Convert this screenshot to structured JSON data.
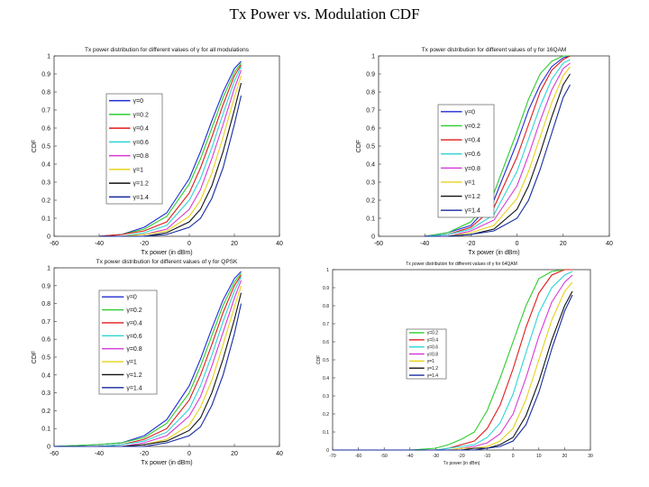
{
  "page": {
    "title": "Tx Power vs. Modulation CDF"
  },
  "legend_labels": {
    "full": [
      "γ=0",
      "γ=0.2",
      "γ=0.4",
      "γ=0.6",
      "γ=0.8",
      "γ=1",
      "γ=1.2",
      "γ=1.4"
    ],
    "short": [
      "γ=0.2",
      "γ=0.4",
      "γ=0.6",
      "γ=0.8",
      "γ=1",
      "γ=1.2",
      "γ=1.4"
    ]
  },
  "chart_data": [
    {
      "id": "all",
      "type": "line",
      "title": "Tx power distribution for different values of γ for all modulations",
      "xlabel": "Tx power (in dBm)",
      "ylabel": "CDF",
      "xlim": [
        -60,
        40
      ],
      "ylim": [
        0,
        1
      ],
      "xticks": [
        "-60",
        "-40",
        "-20",
        "0",
        "20",
        "40"
      ],
      "yticks": [
        "0",
        "0.1",
        "0.2",
        "0.3",
        "0.4",
        "0.5",
        "0.6",
        "0.7",
        "0.8",
        "0.9",
        "1"
      ],
      "legend_position": "left",
      "x": [
        -40,
        -30,
        -20,
        -10,
        0,
        5,
        10,
        15,
        20,
        23
      ],
      "series": [
        {
          "name": "γ=0",
          "color": "#1f2bd6",
          "values": [
            0,
            0.01,
            0.05,
            0.13,
            0.32,
            0.47,
            0.64,
            0.8,
            0.93,
            0.97
          ]
        },
        {
          "name": "γ=0.2",
          "color": "#2ecc2e",
          "values": [
            0,
            0.01,
            0.04,
            0.11,
            0.29,
            0.43,
            0.6,
            0.77,
            0.91,
            0.96
          ]
        },
        {
          "name": "γ=0.4",
          "color": "#e01b1b",
          "values": [
            0,
            0.01,
            0.03,
            0.08,
            0.24,
            0.38,
            0.55,
            0.73,
            0.89,
            0.95
          ]
        },
        {
          "name": "γ=0.6",
          "color": "#2fd4d4",
          "values": [
            0,
            0,
            0.02,
            0.06,
            0.2,
            0.32,
            0.49,
            0.68,
            0.86,
            0.94
          ]
        },
        {
          "name": "γ=0.8",
          "color": "#d63ad6",
          "values": [
            0,
            0,
            0.01,
            0.04,
            0.15,
            0.26,
            0.43,
            0.62,
            0.82,
            0.92
          ]
        },
        {
          "name": "γ=1",
          "color": "#e6d21a",
          "values": [
            0,
            0,
            0.01,
            0.03,
            0.11,
            0.2,
            0.35,
            0.55,
            0.77,
            0.89
          ]
        },
        {
          "name": "γ=1.2",
          "color": "#111111",
          "values": [
            0,
            0,
            0,
            0.02,
            0.08,
            0.15,
            0.28,
            0.47,
            0.7,
            0.85
          ]
        },
        {
          "name": "γ=1.4",
          "color": "#142a9e",
          "values": [
            0,
            0,
            0,
            0.01,
            0.05,
            0.1,
            0.21,
            0.38,
            0.62,
            0.78
          ]
        }
      ]
    },
    {
      "id": "16qam",
      "type": "line",
      "title": "Tx power distribution for different values of γ for 16QAM",
      "xlabel": "Tx power (in dBm)",
      "ylabel": "CDF",
      "xlim": [
        -60,
        40
      ],
      "ylim": [
        0,
        1
      ],
      "xticks": [
        "-60",
        "-40",
        "-20",
        "0",
        "20",
        "40"
      ],
      "yticks": [
        "0",
        "0.1",
        "0.2",
        "0.3",
        "0.4",
        "0.5",
        "0.6",
        "0.7",
        "0.8",
        "0.9",
        "1"
      ],
      "legend_position": "left",
      "x": [
        -40,
        -30,
        -20,
        -10,
        0,
        5,
        10,
        15,
        20,
        23
      ],
      "series": [
        {
          "name": "γ=0",
          "color": "#1f2bd6",
          "values": [
            0,
            0.02,
            0.06,
            0.2,
            0.52,
            0.7,
            0.84,
            0.94,
            0.99,
            1.0
          ]
        },
        {
          "name": "γ=0.2",
          "color": "#2ecc2e",
          "values": [
            0,
            0.02,
            0.08,
            0.24,
            0.58,
            0.76,
            0.9,
            0.97,
            1.0,
            1.0
          ]
        },
        {
          "name": "γ=0.4",
          "color": "#e01b1b",
          "values": [
            0,
            0.01,
            0.05,
            0.16,
            0.44,
            0.62,
            0.8,
            0.92,
            0.98,
            1.0
          ]
        },
        {
          "name": "γ=0.6",
          "color": "#2fd4d4",
          "values": [
            0,
            0.01,
            0.04,
            0.12,
            0.36,
            0.54,
            0.72,
            0.87,
            0.96,
            0.98
          ]
        },
        {
          "name": "γ=0.8",
          "color": "#d63ad6",
          "values": [
            0,
            0,
            0.03,
            0.09,
            0.28,
            0.45,
            0.64,
            0.81,
            0.93,
            0.96
          ]
        },
        {
          "name": "γ=1",
          "color": "#e6d21a",
          "values": [
            0,
            0,
            0.02,
            0.06,
            0.21,
            0.36,
            0.55,
            0.74,
            0.89,
            0.94
          ]
        },
        {
          "name": "γ=1.2",
          "color": "#111111",
          "values": [
            0,
            0,
            0.01,
            0.04,
            0.15,
            0.28,
            0.46,
            0.66,
            0.84,
            0.9
          ]
        },
        {
          "name": "γ=1.4",
          "color": "#142a9e",
          "values": [
            0,
            0,
            0.01,
            0.03,
            0.1,
            0.2,
            0.37,
            0.57,
            0.77,
            0.84
          ]
        }
      ]
    },
    {
      "id": "qpsk",
      "type": "line",
      "title": "Tx power distribution for different values of γ for QPSK",
      "xlabel": "Tx power (in dBm)",
      "ylabel": "CDF",
      "xlim": [
        -60,
        40
      ],
      "ylim": [
        0,
        1
      ],
      "xticks": [
        "-60",
        "-40",
        "-20",
        "0",
        "20",
        "40"
      ],
      "yticks": [
        "0",
        "0.1",
        "0.2",
        "0.3",
        "0.4",
        "0.5",
        "0.6",
        "0.7",
        "0.8",
        "0.9",
        "1"
      ],
      "legend_position": "left",
      "x": [
        -60,
        -40,
        -30,
        -20,
        -10,
        0,
        5,
        10,
        15,
        20,
        23
      ],
      "series": [
        {
          "name": "γ=0",
          "color": "#1f2bd6",
          "values": [
            0,
            0.01,
            0.02,
            0.06,
            0.15,
            0.34,
            0.49,
            0.66,
            0.82,
            0.94,
            0.98
          ]
        },
        {
          "name": "γ=0.2",
          "color": "#2ecc2e",
          "values": [
            0,
            0.01,
            0.02,
            0.05,
            0.13,
            0.3,
            0.45,
            0.62,
            0.79,
            0.92,
            0.97
          ]
        },
        {
          "name": "γ=0.4",
          "color": "#e01b1b",
          "values": [
            0,
            0,
            0.01,
            0.04,
            0.1,
            0.26,
            0.4,
            0.57,
            0.75,
            0.9,
            0.96
          ]
        },
        {
          "name": "γ=0.6",
          "color": "#2fd4d4",
          "values": [
            0,
            0,
            0.01,
            0.03,
            0.08,
            0.21,
            0.34,
            0.51,
            0.7,
            0.87,
            0.95
          ]
        },
        {
          "name": "γ=0.8",
          "color": "#d63ad6",
          "values": [
            0,
            0,
            0,
            0.02,
            0.06,
            0.17,
            0.28,
            0.45,
            0.64,
            0.83,
            0.93
          ]
        },
        {
          "name": "γ=1",
          "color": "#e6d21a",
          "values": [
            0,
            0,
            0,
            0.01,
            0.04,
            0.12,
            0.22,
            0.37,
            0.57,
            0.78,
            0.9
          ]
        },
        {
          "name": "γ=1.2",
          "color": "#111111",
          "values": [
            0,
            0,
            0,
            0.01,
            0.03,
            0.09,
            0.16,
            0.3,
            0.49,
            0.71,
            0.86
          ]
        },
        {
          "name": "γ=1.4",
          "color": "#142a9e",
          "values": [
            0,
            0,
            0,
            0,
            0.02,
            0.06,
            0.11,
            0.23,
            0.4,
            0.63,
            0.8
          ]
        }
      ]
    },
    {
      "id": "64qam",
      "type": "line",
      "title": "Tx power distribution for different values of γ for 64QAM",
      "xlabel": "Tx power (in dBm)",
      "ylabel": "CDF",
      "xlim": [
        -70,
        30
      ],
      "ylim": [
        0,
        1
      ],
      "xticks": [
        "-70",
        "-60",
        "-50",
        "-40",
        "-30",
        "-20",
        "-10",
        "0",
        "10",
        "20",
        "30"
      ],
      "yticks": [
        "0",
        "0.1",
        "0.2",
        "0.3",
        "0.4",
        "0.5",
        "0.6",
        "0.7",
        "0.8",
        "0.9",
        "1"
      ],
      "legend_position": "left",
      "x": [
        -70,
        -40,
        -30,
        -25,
        -20,
        -15,
        -10,
        -5,
        0,
        5,
        10,
        15,
        20,
        23
      ],
      "series": [
        {
          "name": "γ=0.2",
          "color": "#2ecc2e",
          "values": [
            0,
            0,
            0.01,
            0.03,
            0.06,
            0.1,
            0.22,
            0.4,
            0.6,
            0.8,
            0.95,
            0.99,
            1.0,
            1.0
          ]
        },
        {
          "name": "γ=0.4",
          "color": "#e01b1b",
          "values": [
            0,
            0,
            0,
            0.01,
            0.03,
            0.05,
            0.12,
            0.25,
            0.45,
            0.68,
            0.87,
            0.97,
            1.0,
            1.0
          ]
        },
        {
          "name": "γ=0.6",
          "color": "#2fd4d4",
          "values": [
            0,
            0,
            0,
            0.01,
            0.02,
            0.03,
            0.07,
            0.15,
            0.31,
            0.54,
            0.76,
            0.9,
            0.97,
            0.99
          ]
        },
        {
          "name": "γ=0.8",
          "color": "#d63ad6",
          "values": [
            0,
            0,
            0,
            0,
            0.01,
            0.02,
            0.04,
            0.09,
            0.2,
            0.4,
            0.63,
            0.82,
            0.93,
            0.97
          ]
        },
        {
          "name": "γ=1",
          "color": "#e6d21a",
          "values": [
            0,
            0,
            0,
            0,
            0.01,
            0.01,
            0.02,
            0.05,
            0.12,
            0.28,
            0.5,
            0.72,
            0.88,
            0.93
          ]
        },
        {
          "name": "γ=1.2",
          "color": "#111111",
          "values": [
            0,
            0,
            0,
            0,
            0,
            0.01,
            0.01,
            0.03,
            0.07,
            0.19,
            0.38,
            0.61,
            0.8,
            0.88
          ]
        },
        {
          "name": "γ=1.4",
          "color": "#142a9e",
          "values": [
            0,
            0,
            0,
            0,
            0,
            0,
            0.01,
            0.02,
            0.05,
            0.14,
            0.32,
            0.56,
            0.77,
            0.86
          ]
        }
      ]
    }
  ]
}
